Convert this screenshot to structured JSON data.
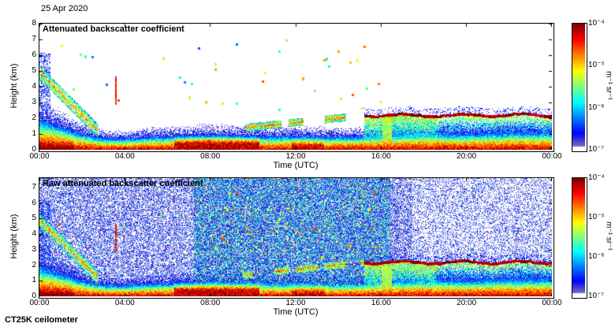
{
  "page": {
    "date_label": "25 Apr 2020",
    "instrument_label": "CT25K ceilometer",
    "background_color": "#ffffff",
    "text_color": "#000000"
  },
  "chart_data": [
    {
      "type": "heatmap",
      "title": "Attenuated backscatter coefficient",
      "xlabel": "Time (UTC)",
      "ylabel": "Height (km)",
      "x_ticks": [
        "00:00",
        "04:00",
        "08:00",
        "12:00",
        "16:00",
        "20:00",
        "00:00"
      ],
      "x_range_hours": [
        0,
        24
      ],
      "y_ticks": [
        0,
        1,
        2,
        3,
        4,
        5,
        6,
        7,
        8
      ],
      "ylim_km": [
        0,
        8
      ],
      "grid": false,
      "colorbar": {
        "tick_labels": [
          "10⁻⁴",
          "10⁻⁵",
          "10⁻⁶",
          "10⁻⁷"
        ],
        "unit_label": "m⁻¹ sr⁻¹",
        "log10_range": [
          -7,
          -4
        ],
        "colormap": "jet",
        "position": "right"
      },
      "raw_noise": false,
      "seed": 3
    },
    {
      "type": "heatmap",
      "title": "Raw attenuated backscatter coefficient",
      "xlabel": "Time (UTC)",
      "ylabel": "Height (km)",
      "x_ticks": [
        "00:00",
        "04:00",
        "08:00",
        "12:00",
        "16:00",
        "20:00",
        "00:00"
      ],
      "x_range_hours": [
        0,
        24
      ],
      "y_ticks": [
        0,
        1,
        2,
        3,
        4,
        5,
        6,
        7
      ],
      "ylim_km": [
        0,
        7.6
      ],
      "grid": false,
      "colorbar": {
        "tick_labels": [
          "10⁻⁴",
          "10⁻⁵",
          "10⁻⁶",
          "10⁻⁷"
        ],
        "unit_label": "m⁻¹ sr⁻¹",
        "log10_range": [
          -7,
          -4
        ],
        "colormap": "jet",
        "position": "right"
      },
      "raw_noise": true,
      "seed": 11
    }
  ],
  "atmosphere": {
    "mixed_layer_top_km": [
      1.9,
      1.45,
      1.0,
      0.75,
      0.7,
      0.8,
      0.85,
      0.9,
      0.95,
      0.92,
      0.88,
      0.85,
      0.9,
      0.85,
      0.82,
      0.85,
      0.95,
      1.0,
      1.05,
      1.05,
      1.0,
      1.05,
      1.1,
      1.1,
      1.1
    ],
    "surface_strong_episodes_hours": [
      [
        0,
        1.6
      ],
      [
        6.3,
        10.3
      ],
      [
        11.8,
        13.3
      ]
    ],
    "residual_layer": {
      "start_km": 4.9,
      "descent_rate_km_per_h": 1.35,
      "end_hour": 2.3
    },
    "precip_spike": {
      "hour": 3.55,
      "base_km": 2.9,
      "top_km": 4.7
    },
    "scattered_clouds": {
      "hours": [
        0.8,
        16.0
      ],
      "height_range_km": [
        2.5,
        7.0
      ],
      "density": 0.22
    },
    "elevated_patches": {
      "hours": [
        9.5,
        15.2
      ],
      "base_km": 1.4,
      "rise_km_per_h": 0.14
    },
    "cloud_base_km": {
      "start_hour": 15.2,
      "mean": 2.2,
      "amplitude": 0.08
    },
    "drizzle_column": {
      "hours": [
        16.05,
        16.5
      ]
    },
    "raw_noise_density_daytime": 0.85,
    "raw_noise_daytime_hours": [
      7.2,
      16.4
    ],
    "raw_noise_density_evening": 0.33
  }
}
